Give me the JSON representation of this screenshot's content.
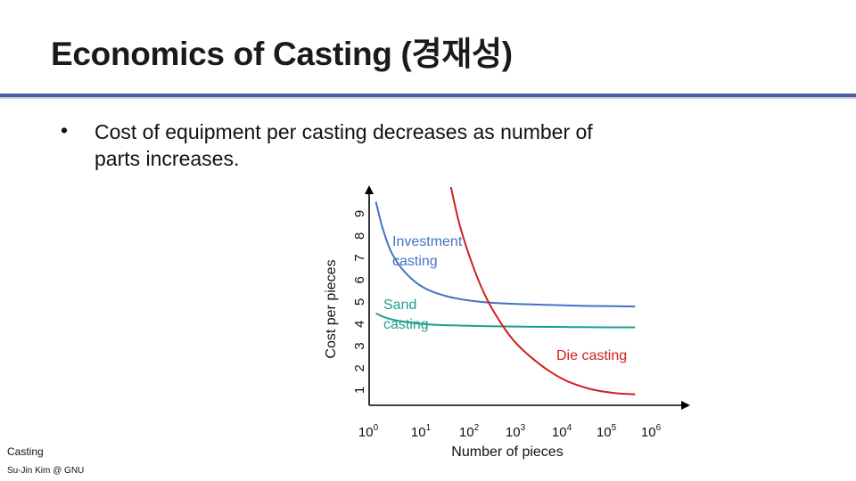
{
  "slide": {
    "title": "Economics of Casting (경재성)",
    "bullet_marker": "•",
    "bullet_text": "Cost of equipment per casting decreases as number of parts increases.",
    "footer_label": "Casting",
    "footer_author": "Su-Jin Kim @ GNU"
  },
  "colors": {
    "title_rule": "#4a5f9c",
    "investment": "#4472c4",
    "sand": "#1f9e8e",
    "die": "#d0201b",
    "axis": "#000000"
  },
  "chart_data": {
    "type": "line",
    "xlabel": "Number of pieces",
    "ylabel": "Cost per pieces",
    "x_scale": "log",
    "x_ticks": [
      {
        "base": "10",
        "exp": "0"
      },
      {
        "base": "10",
        "exp": "1"
      },
      {
        "base": "10",
        "exp": "2"
      },
      {
        "base": "10",
        "exp": "3"
      },
      {
        "base": "10",
        "exp": "4"
      },
      {
        "base": "10",
        "exp": "5"
      },
      {
        "base": "10",
        "exp": "6"
      }
    ],
    "y_ticks": [
      "1",
      "2",
      "3",
      "4",
      "5",
      "6",
      "7",
      "8",
      "9"
    ],
    "xlim": [
      0,
      6.2
    ],
    "ylim": [
      0.7,
      9.6
    ],
    "series": [
      {
        "name": "Investment casting",
        "label_lines": [
          "Investment",
          "casting"
        ],
        "color": "#4472c4",
        "x": [
          0.15,
          0.3,
          0.5,
          0.8,
          1.2,
          1.7,
          2.3,
          3.0,
          3.8,
          4.6,
          5.4,
          5.85
        ],
        "y": [
          9.0,
          7.9,
          6.9,
          6.1,
          5.5,
          5.15,
          4.95,
          4.85,
          4.8,
          4.76,
          4.74,
          4.73
        ]
      },
      {
        "name": "Sand casting",
        "label_lines": [
          "Sand",
          "casting"
        ],
        "color": "#1f9e8e",
        "x": [
          0.15,
          0.4,
          0.8,
          1.3,
          2.0,
          2.8,
          3.6,
          4.4,
          5.2,
          5.85
        ],
        "y": [
          4.45,
          4.25,
          4.1,
          4.0,
          3.95,
          3.92,
          3.9,
          3.89,
          3.88,
          3.88
        ]
      },
      {
        "name": "Die casting",
        "label_lines": [
          "Die casting"
        ],
        "color": "#d0201b",
        "x": [
          1.8,
          2.0,
          2.3,
          2.6,
          2.9,
          3.2,
          3.6,
          4.0,
          4.4,
          4.9,
          5.4,
          5.85
        ],
        "y": [
          9.6,
          8.0,
          6.3,
          5.0,
          4.05,
          3.3,
          2.6,
          2.05,
          1.65,
          1.35,
          1.2,
          1.15
        ]
      }
    ]
  }
}
